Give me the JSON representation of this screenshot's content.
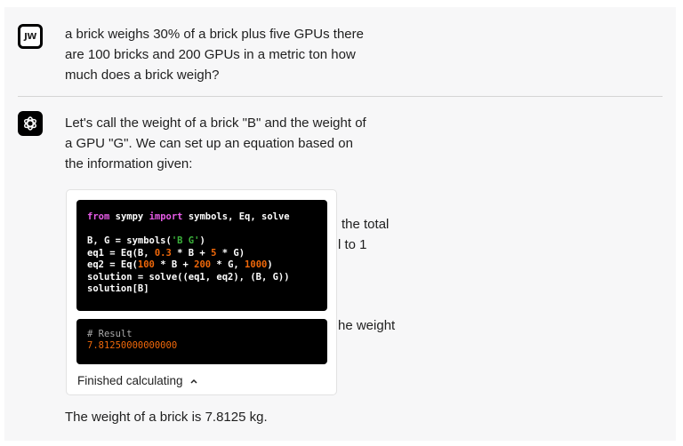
{
  "user": {
    "initials": "JW",
    "message": "a brick weighs 30% of a brick plus five GPUs there are 100 bricks and 200 GPUs in a metric ton how much does a brick weigh?"
  },
  "assistant": {
    "icon": "openai-logo-icon",
    "intro": "Let's call the weight of a brick \"B\" and the weight of a GPU \"G\". We can set up an equation based on the information given:",
    "occluded_fragments": [
      "the total",
      "l to 1",
      "he weight"
    ],
    "code_lines": [
      [
        {
          "t": "from",
          "c": "kw"
        },
        {
          "t": " sympy "
        },
        {
          "t": "import",
          "c": "kw"
        },
        {
          "t": " symbols, Eq, solve"
        }
      ],
      [
        {
          "t": ""
        }
      ],
      [
        {
          "t": "B, G = symbols("
        },
        {
          "t": "'B G'",
          "c": "str"
        },
        {
          "t": ")"
        }
      ],
      [
        {
          "t": "eq1 = Eq(B, "
        },
        {
          "t": "0.3",
          "c": "num"
        },
        {
          "t": " * B + "
        },
        {
          "t": "5",
          "c": "num"
        },
        {
          "t": " * G)"
        }
      ],
      [
        {
          "t": "eq2 = Eq("
        },
        {
          "t": "100",
          "c": "num"
        },
        {
          "t": " * B + "
        },
        {
          "t": "200",
          "c": "num"
        },
        {
          "t": " * G, "
        },
        {
          "t": "1000",
          "c": "num"
        },
        {
          "t": ")"
        }
      ],
      [
        {
          "t": "solution = solve((eq1, eq2), (B, G))"
        }
      ],
      [
        {
          "t": "solution[B]"
        }
      ]
    ],
    "result_comment": "# Result",
    "result_value": "7.81250000000000",
    "status_label": "Finished calculating",
    "status_icon": "chevron-up-icon",
    "conclusion": "The weight of a brick is 7.8125 kg."
  }
}
